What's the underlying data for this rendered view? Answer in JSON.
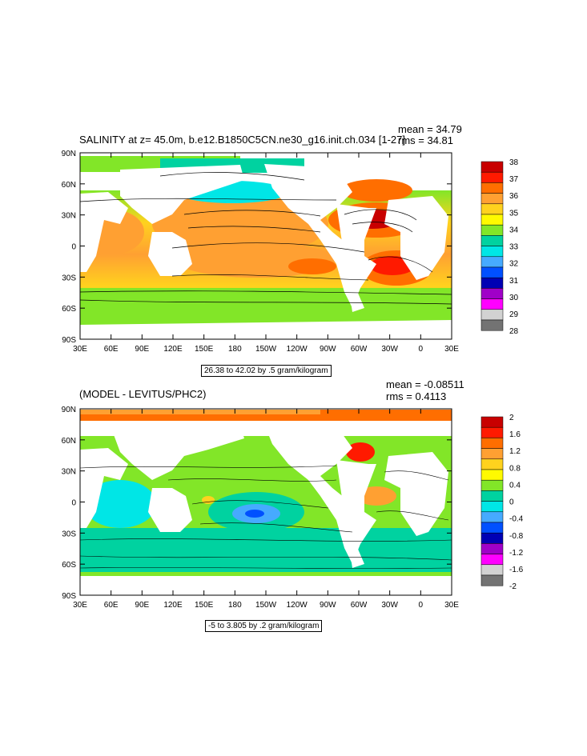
{
  "panels": [
    {
      "title": "SALINITY at z=  45.0m, b.e12.B1850C5CN.ne30_g16.init.ch.034 [1-27]",
      "mean": "mean = 34.79",
      "rms": "rms = 34.81",
      "contour_info": "26.38 to 42.02 by .5 gram/kilogram",
      "lat_labels": [
        "90N",
        "60N",
        "30N",
        "0",
        "30S",
        "60S",
        "90S"
      ],
      "lon_labels": [
        "30E",
        "60E",
        "90E",
        "120E",
        "150E",
        "180",
        "150W",
        "120W",
        "90W",
        "60W",
        "30W",
        "0",
        "30E"
      ],
      "colorbar_labels": [
        "38",
        "37",
        "36",
        "35",
        "34",
        "33",
        "32",
        "31",
        "30",
        "29",
        "28"
      ],
      "colorbar_colors": [
        "#c80000",
        "#ff1a00",
        "#ff6e00",
        "#ffa032",
        "#ffd21e",
        "#fffa00",
        "#82e628",
        "#00d2a0",
        "#00e6e6",
        "#46aaff",
        "#0050ff",
        "#0000b4",
        "#a000c8",
        "#ff00ff",
        "#d2d2d2",
        "#737373"
      ]
    },
    {
      "title": "(MODEL - LEVITUS/PHC2)",
      "mean": "mean = -0.08511",
      "rms": "rms = 0.4113",
      "contour_info": "-5 to 3.805 by .2 gram/kilogram",
      "lat_labels": [
        "90N",
        "60N",
        "30N",
        "0",
        "30S",
        "60S",
        "90S"
      ],
      "lon_labels": [
        "30E",
        "60E",
        "90E",
        "120E",
        "150E",
        "180",
        "150W",
        "120W",
        "90W",
        "60W",
        "30W",
        "0",
        "30E"
      ],
      "colorbar_labels": [
        "2",
        "1.6",
        "1.2",
        "0.8",
        "0.4",
        "0",
        "-0.4",
        "-0.8",
        "-1.2",
        "-1.6",
        "-2"
      ],
      "colorbar_colors": [
        "#c80000",
        "#ff1a00",
        "#ff6e00",
        "#ffa032",
        "#ffd21e",
        "#fffa00",
        "#82e628",
        "#00d2a0",
        "#00e6e6",
        "#46aaff",
        "#0050ff",
        "#0000b4",
        "#a000c8",
        "#ff00ff",
        "#d2d2d2",
        "#737373"
      ]
    }
  ]
}
